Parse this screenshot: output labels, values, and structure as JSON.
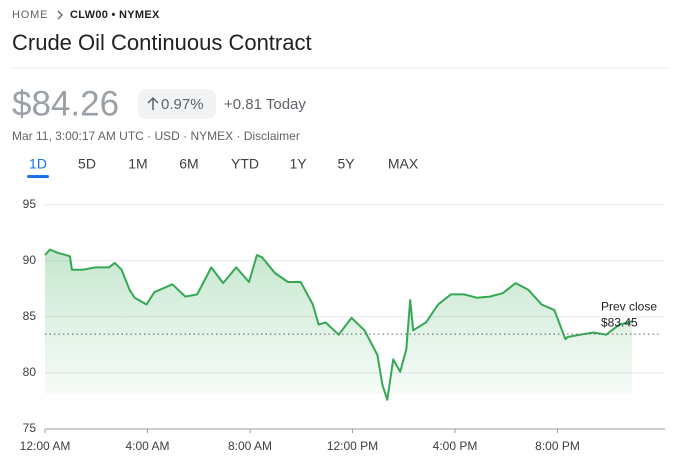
{
  "breadcrumb": {
    "home": "HOME",
    "ticker": "CLW00 • NYMEX"
  },
  "title": "Crude Oil Continuous Contract",
  "price": "$84.26",
  "change_pct": "0.97%",
  "change_abs": "+0.81 Today",
  "meta": "Mar 11, 3:00:17 AM UTC · USD · NYMEX · Disclaimer",
  "ranges": [
    "1D",
    "5D",
    "1M",
    "6M",
    "YTD",
    "1Y",
    "5Y",
    "MAX"
  ],
  "chart_data": {
    "type": "line",
    "x": [
      0,
      0.19,
      0.5,
      0.97,
      1.05,
      1.48,
      1.98,
      2.49,
      2.72,
      2.99,
      3.3,
      3.5,
      3.96,
      4.27,
      4.47,
      4.97,
      5.48,
      5.94,
      6.49,
      6.95,
      7.46,
      7.96,
      8.27,
      8.47,
      8.97,
      9.48,
      9.98,
      10.45,
      10.68,
      10.95,
      11.46,
      11.96,
      12.47,
      12.97,
      13.17,
      13.36,
      13.59,
      13.86,
      14.1,
      14.25,
      14.37,
      14.87,
      15.34,
      15.84,
      16.35,
      16.85,
      17.36,
      17.86,
      18.37,
      18.87,
      19.38,
      19.88,
      20.31,
      20.39,
      20.89,
      21.4,
      21.9,
      22.41,
      22.91
    ],
    "series": [
      {
        "color": "#34a853",
        "values": [
          90.5,
          91.0,
          90.7,
          90.4,
          89.2,
          89.2,
          89.4,
          89.4,
          89.8,
          89.2,
          87.4,
          86.7,
          86.1,
          87.2,
          87.4,
          87.9,
          86.8,
          87.0,
          89.4,
          88.0,
          89.4,
          88.1,
          90.5,
          90.3,
          88.9,
          88.1,
          88.1,
          86.1,
          84.3,
          84.5,
          83.4,
          84.9,
          83.8,
          81.6,
          78.9,
          77.6,
          81.2,
          80.1,
          82.1,
          86.5,
          83.8,
          84.5,
          86.1,
          87.0,
          87.0,
          86.7,
          86.8,
          87.1,
          88.0,
          87.4,
          86.1,
          85.6,
          83.0,
          83.2,
          83.4,
          83.6,
          83.4,
          84.3,
          84.6
        ]
      }
    ],
    "xlim": [
      0,
      24
    ],
    "xticks": [
      {
        "value": 0,
        "label": "12:00 AM"
      },
      {
        "value": 4,
        "label": "4:00 AM"
      },
      {
        "value": 8,
        "label": "8:00 AM"
      },
      {
        "value": 12,
        "label": "12:00 PM"
      },
      {
        "value": 16,
        "label": "4:00 PM"
      },
      {
        "value": 20,
        "label": "8:00 PM"
      }
    ],
    "ylim": [
      75,
      96.3
    ],
    "yticks": [
      75,
      80,
      85,
      90,
      95
    ],
    "grid": true,
    "prev_close": {
      "label": "Prev close",
      "value": 83.45,
      "value_label": "$83.45"
    }
  }
}
